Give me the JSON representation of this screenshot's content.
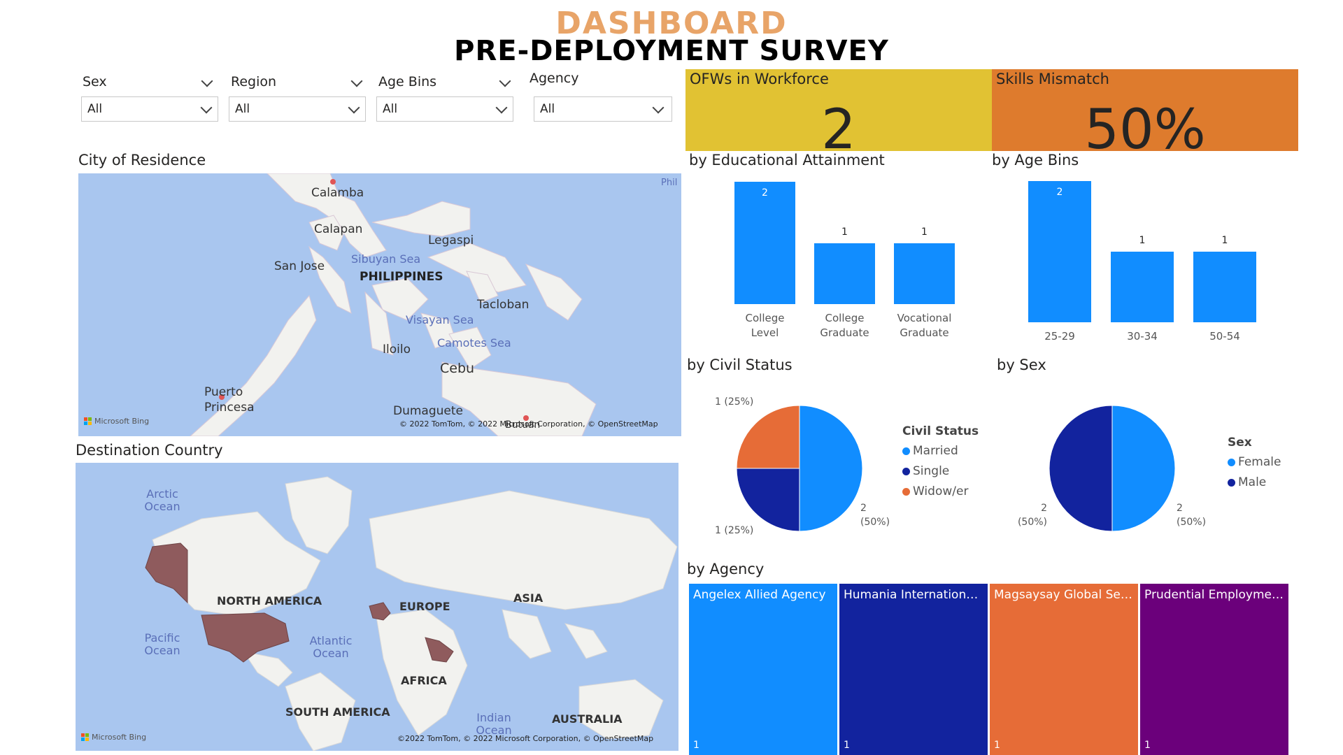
{
  "header": {
    "title": "DASHBOARD",
    "subtitle": "PRE-DEPLOYMENT SURVEY"
  },
  "slicers": [
    {
      "label": "Sex",
      "value": "All"
    },
    {
      "label": "Region",
      "value": "All"
    },
    {
      "label": "Age Bins",
      "value": "All"
    },
    {
      "label": "Agency",
      "value": "All"
    }
  ],
  "kpis": {
    "ofws": {
      "title": "OFWs in Workforce",
      "value": "2",
      "color": "#E1C233"
    },
    "skills": {
      "title": "Skills Mismatch",
      "value": "50%",
      "color": "#DE7B2D"
    }
  },
  "city_map": {
    "title": "City of Residence",
    "places": [
      "Calamba",
      "Calapan",
      "Legaspi",
      "San Jose",
      "PHILIPPINES",
      "Tacloban",
      "Iloilo",
      "Cebu",
      "Puerto Princesa",
      "Dumaguete",
      "Butuan"
    ],
    "seas": [
      "Sibuyan Sea",
      "Visayan Sea",
      "Camotes Sea"
    ],
    "corner": "Phil",
    "bing": "Microsoft Bing",
    "attribution": "© 2022 TomTom, © 2022 Microsoft Corporation, © OpenStreetMap"
  },
  "dest_map": {
    "title": "Destination Country",
    "continents": [
      "NORTH AMERICA",
      "EUROPE",
      "ASIA",
      "AFRICA",
      "SOUTH AMERICA",
      "AUSTRALIA"
    ],
    "oceans": [
      "Arctic Ocean",
      "Pacific Ocean",
      "Atlantic Ocean",
      "Indian Ocean"
    ],
    "bing": "Microsoft Bing",
    "attribution": "©2022 TomTom, © 2022 Microsoft Corporation, © OpenStreetMap"
  },
  "section_titles": {
    "edu": "by Educational Attainment",
    "age": "by Age Bins",
    "civil": "by Civil Status",
    "sex": "by Sex",
    "agency": "by Agency"
  },
  "chart_data": [
    {
      "type": "bar",
      "title": "by Educational Attainment",
      "categories": [
        "College Level",
        "College Graduate",
        "Vocational Graduate"
      ],
      "values": [
        2,
        1,
        1
      ],
      "ylim": [
        0,
        2
      ]
    },
    {
      "type": "bar",
      "title": "by Age Bins",
      "categories": [
        "25-29",
        "30-34",
        "50-54"
      ],
      "values": [
        2,
        1,
        1
      ],
      "ylim": [
        0,
        2
      ]
    },
    {
      "type": "pie",
      "title": "by Civil Status",
      "legend_title": "Civil Status",
      "labels": [
        "Married",
        "Single",
        "Widow/er"
      ],
      "values": [
        2,
        1,
        1
      ],
      "data_labels": [
        "2 (50%)",
        "1 (25%)",
        "1 (25%)"
      ],
      "colors": [
        "#118DFF",
        "#12239E",
        "#E66C37"
      ]
    },
    {
      "type": "pie",
      "title": "by Sex",
      "legend_title": "Sex",
      "labels": [
        "Female",
        "Male"
      ],
      "values": [
        2,
        2
      ],
      "data_labels": [
        "2 (50%)",
        "2 (50%)"
      ],
      "colors": [
        "#118DFF",
        "#12239E"
      ]
    },
    {
      "type": "treemap",
      "title": "by Agency",
      "labels": [
        "Angelex Allied Agency",
        "Humania International ...",
        "Magsaysay Global Serv...",
        "Prudential Employment..."
      ],
      "values": [
        1,
        1,
        1,
        1
      ],
      "colors": [
        "#118DFF",
        "#12239E",
        "#E66C37",
        "#6B007B"
      ]
    }
  ]
}
